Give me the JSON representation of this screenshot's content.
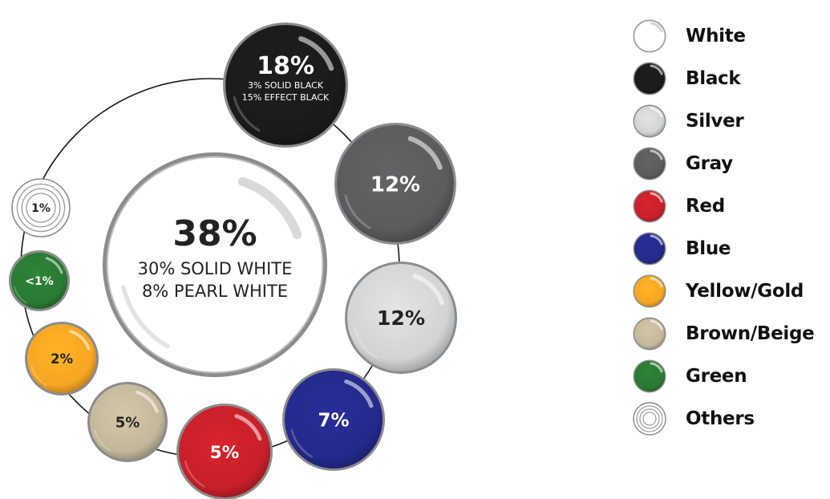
{
  "chart_data": {
    "type": "bubble",
    "title": "",
    "unit": "%",
    "items": [
      {
        "key": "white",
        "name": "White",
        "value": 38,
        "value_label": "38%",
        "sub_labels": [
          "30% SOLID WHITE",
          "8% PEARL WHITE"
        ],
        "color": "#ffffff",
        "text_color": "#222222",
        "style": "solid"
      },
      {
        "key": "black",
        "name": "Black",
        "value": 18,
        "value_label": "18%",
        "sub_labels": [
          "3% SOLID BLACK",
          "15% EFFECT BLACK"
        ],
        "color": "#1c1b1c",
        "text_color": "#ffffff",
        "style": "solid"
      },
      {
        "key": "gray",
        "name": "Gray",
        "value": 12,
        "value_label": "12%",
        "sub_labels": [],
        "color": "#5c5c5e",
        "text_color": "#ffffff",
        "style": "solid"
      },
      {
        "key": "silver",
        "name": "Silver",
        "value": 12,
        "value_label": "12%",
        "sub_labels": [],
        "color": "#d2d3d5",
        "text_color": "#222222",
        "style": "solid"
      },
      {
        "key": "blue",
        "name": "Blue",
        "value": 7,
        "value_label": "7%",
        "sub_labels": [],
        "color": "#242a8c",
        "text_color": "#ffffff",
        "style": "solid"
      },
      {
        "key": "red",
        "name": "Red",
        "value": 5,
        "value_label": "5%",
        "sub_labels": [],
        "color": "#c8202a",
        "text_color": "#ffffff",
        "style": "solid"
      },
      {
        "key": "brown",
        "name": "Brown/Beige",
        "value": 5,
        "value_label": "5%",
        "sub_labels": [],
        "color": "#c4b89c",
        "text_color": "#222222",
        "style": "solid"
      },
      {
        "key": "yellow",
        "name": "Yellow/Gold",
        "value": 2,
        "value_label": "2%",
        "sub_labels": [],
        "color": "#f6a623",
        "text_color": "#222222",
        "style": "solid"
      },
      {
        "key": "green",
        "name": "Green",
        "value": 1,
        "value_label": "<1%",
        "sub_labels": [],
        "color": "#2a7a33",
        "text_color": "#ffffff",
        "style": "solid"
      },
      {
        "key": "others",
        "name": "Others",
        "value": 1,
        "value_label": "1%",
        "sub_labels": [],
        "color": "#ffffff",
        "text_color": "#222222",
        "style": "rings"
      }
    ],
    "legend": {
      "position": "right",
      "entries": [
        {
          "label": "White",
          "color": "#ffffff",
          "style": "solid"
        },
        {
          "label": "Black",
          "color": "#1c1b1c",
          "style": "solid"
        },
        {
          "label": "Silver",
          "color": "#d2d3d5",
          "style": "solid"
        },
        {
          "label": "Gray",
          "color": "#5c5c5e",
          "style": "solid"
        },
        {
          "label": "Red",
          "color": "#c8202a",
          "style": "solid"
        },
        {
          "label": "Blue",
          "color": "#242a8c",
          "style": "solid"
        },
        {
          "label": "Yellow/Gold",
          "color": "#f6a623",
          "style": "solid"
        },
        {
          "label": "Brown/Beige",
          "color": "#c4b89c",
          "style": "solid"
        },
        {
          "label": "Green",
          "color": "#2a7a33",
          "style": "solid"
        },
        {
          "label": "Others",
          "color": "#ffffff",
          "style": "rings"
        }
      ]
    }
  }
}
